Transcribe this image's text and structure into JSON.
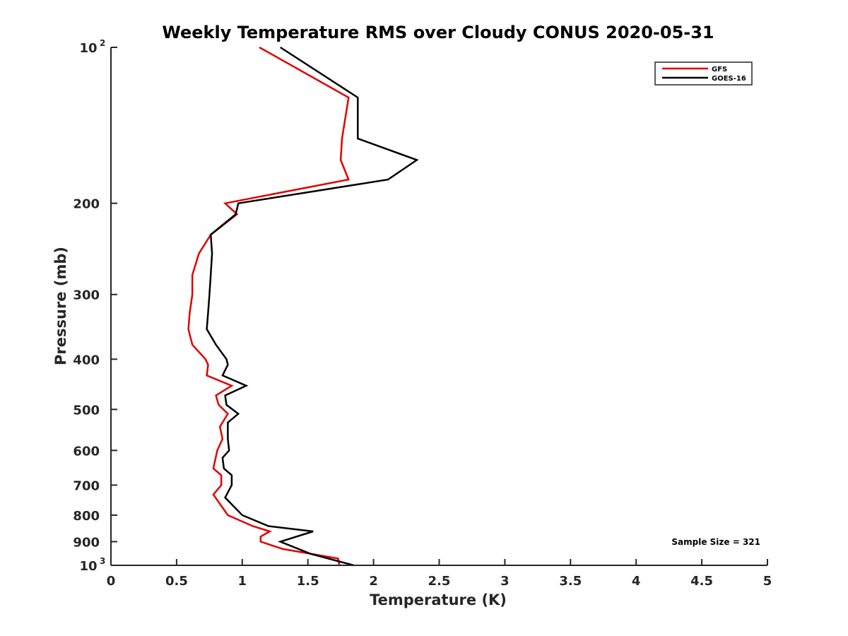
{
  "chart_data": {
    "type": "line",
    "title": "Weekly Temperature RMS over Cloudy CONUS 2020-05-31",
    "xlabel": "Temperature (K)",
    "ylabel": "Pressure (mb)",
    "xlim": [
      0,
      5
    ],
    "ylim": [
      100,
      1000
    ],
    "y_scale": "log",
    "y_reversed": true,
    "grid": false,
    "legend_position": "top-right",
    "x_ticks": [
      0,
      0.5,
      1,
      1.5,
      2,
      2.5,
      3,
      3.5,
      4,
      4.5,
      5
    ],
    "x_tick_labels": [
      "0",
      "0.5",
      "1",
      "1.5",
      "2",
      "2.5",
      "3",
      "3.5",
      "4",
      "4.5",
      "5"
    ],
    "y_ticks": [
      {
        "value": 100,
        "label": "10",
        "exponent": "2"
      },
      {
        "value": 200,
        "label": "200"
      },
      {
        "value": 300,
        "label": "300"
      },
      {
        "value": 400,
        "label": "400"
      },
      {
        "value": 500,
        "label": "500"
      },
      {
        "value": 600,
        "label": "600"
      },
      {
        "value": 700,
        "label": "700"
      },
      {
        "value": 800,
        "label": "800"
      },
      {
        "value": 900,
        "label": "900"
      },
      {
        "value": 1000,
        "label": "10",
        "exponent": "3"
      }
    ],
    "series": [
      {
        "name": "GFS",
        "color": "#e00000",
        "points": [
          [
            1.13,
            100
          ],
          [
            1.81,
            125
          ],
          [
            1.76,
            150
          ],
          [
            1.75,
            165
          ],
          [
            1.81,
            180
          ],
          [
            0.87,
            200
          ],
          [
            0.96,
            210
          ],
          [
            0.76,
            230
          ],
          [
            0.67,
            250
          ],
          [
            0.62,
            275
          ],
          [
            0.62,
            300
          ],
          [
            0.6,
            325
          ],
          [
            0.59,
            350
          ],
          [
            0.62,
            375
          ],
          [
            0.72,
            400
          ],
          [
            0.74,
            410
          ],
          [
            0.73,
            430
          ],
          [
            0.92,
            450
          ],
          [
            0.8,
            470
          ],
          [
            0.82,
            490
          ],
          [
            0.89,
            510
          ],
          [
            0.83,
            540
          ],
          [
            0.85,
            570
          ],
          [
            0.81,
            600
          ],
          [
            0.78,
            650
          ],
          [
            0.84,
            670
          ],
          [
            0.84,
            700
          ],
          [
            0.78,
            730
          ],
          [
            0.89,
            800
          ],
          [
            1.08,
            840
          ],
          [
            1.21,
            860
          ],
          [
            1.14,
            880
          ],
          [
            1.14,
            900
          ],
          [
            1.31,
            930
          ],
          [
            1.73,
            970
          ],
          [
            1.74,
            1000
          ]
        ]
      },
      {
        "name": "GOES-16",
        "color": "#000000",
        "points": [
          [
            1.29,
            100
          ],
          [
            1.88,
            125
          ],
          [
            1.88,
            150
          ],
          [
            2.33,
            165
          ],
          [
            2.11,
            180
          ],
          [
            0.97,
            200
          ],
          [
            0.95,
            210
          ],
          [
            0.76,
            230
          ],
          [
            0.77,
            250
          ],
          [
            0.76,
            275
          ],
          [
            0.75,
            300
          ],
          [
            0.74,
            325
          ],
          [
            0.73,
            350
          ],
          [
            0.8,
            375
          ],
          [
            0.88,
            400
          ],
          [
            0.89,
            410
          ],
          [
            0.85,
            430
          ],
          [
            1.03,
            450
          ],
          [
            0.87,
            470
          ],
          [
            0.88,
            490
          ],
          [
            0.97,
            510
          ],
          [
            0.89,
            530
          ],
          [
            0.89,
            570
          ],
          [
            0.9,
            600
          ],
          [
            0.85,
            620
          ],
          [
            0.86,
            650
          ],
          [
            0.92,
            670
          ],
          [
            0.92,
            700
          ],
          [
            0.87,
            740
          ],
          [
            1.0,
            800
          ],
          [
            1.2,
            840
          ],
          [
            1.54,
            860
          ],
          [
            1.29,
            900
          ],
          [
            1.52,
            950
          ],
          [
            1.85,
            1000
          ]
        ]
      }
    ],
    "annotation": "Sample Size = 321"
  }
}
